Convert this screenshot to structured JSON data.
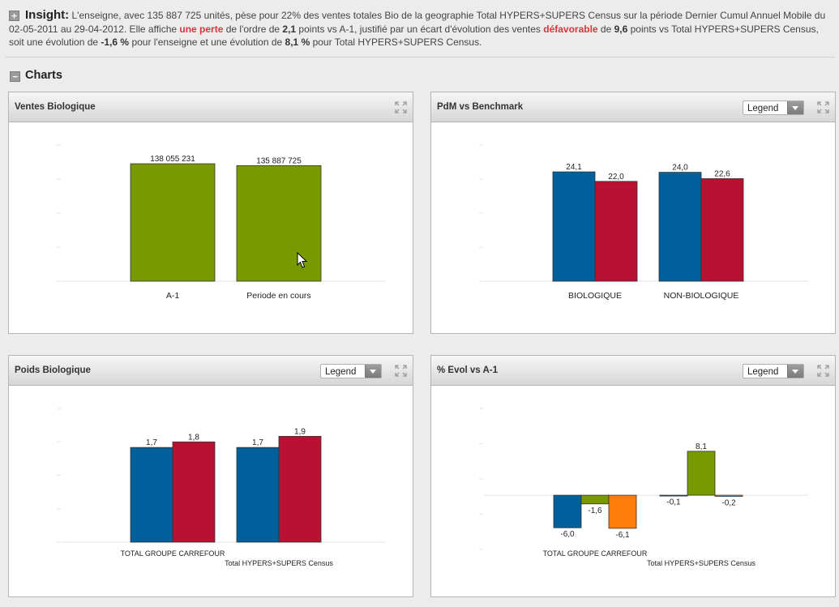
{
  "insight": {
    "title": "Insight:",
    "seg1": "L'enseigne, avec  135 887 725 unités, pèse pour 22% des ventes totales Bio de la geographie Total HYPERS+SUPERS Census sur la période Dernier Cumul Annuel Mobile du 02-05-2011 au 29-04-2012. Elle affiche ",
    "loss": "une perte",
    "seg2": "  de l'ordre de ",
    "points1": "2,1",
    "seg3": "  points vs A-1,  justifié par un écart d'évolution des ventes ",
    "unfav": "défavorable",
    "seg4": " de ",
    "points2": "9,6",
    "seg5": " points vs Total HYPERS+SUPERS Census, soit une évolution de ",
    "evol1": "-1,6 %",
    "seg6": " pour l'enseigne et une évolution de ",
    "evol2": "8,1 %",
    "seg7": " pour Total HYPERS+SUPERS Census."
  },
  "section": {
    "title": "Charts",
    "expand_symbol": "+",
    "collapse_symbol": "−"
  },
  "legend_dropdown_label": "Legend",
  "icons": {
    "insight_toggle": "plus-icon",
    "charts_toggle": "minus-icon",
    "panel_expand": "expand-arrows-icon",
    "cursor": "mouse-pointer-icon"
  },
  "colors": {
    "green": "#789a00",
    "blue": "#00609c",
    "red": "#b81232",
    "orange": "#ff7c0a",
    "highlight_red": "#d9363e"
  },
  "chart_data": [
    {
      "id": "ventes",
      "title": "Ventes Biologique",
      "type": "bar",
      "has_legend_dropdown": false,
      "categories": [
        "A-1",
        "Periode en cours"
      ],
      "ylim": [
        0,
        160000000
      ],
      "series": [
        {
          "values": [
            138055231,
            135887725
          ],
          "labels": [
            "138 055 231",
            "135 887 725"
          ],
          "color": "#789a00"
        }
      ]
    },
    {
      "id": "pdm",
      "title": "PdM vs Benchmark",
      "type": "bar",
      "has_legend_dropdown": true,
      "categories": [
        "BIOLOGIQUE",
        "NON-BIOLOGIQUE"
      ],
      "ylim": [
        0,
        30
      ],
      "series": [
        {
          "values": [
            24.1,
            24.0
          ],
          "labels": [
            "24,1",
            "24,0"
          ],
          "color": "#00609c"
        },
        {
          "values": [
            22.0,
            22.6
          ],
          "labels": [
            "22,0",
            "22,6"
          ],
          "color": "#b81232"
        }
      ]
    },
    {
      "id": "poids",
      "title": "Poids Biologique",
      "type": "bar",
      "has_legend_dropdown": true,
      "categories": [
        "TOTAL GROUPE CARREFOUR",
        "Total HYPERS+SUPERS Census"
      ],
      "ylim": [
        0,
        2.4
      ],
      "series": [
        {
          "values": [
            1.7,
            1.7
          ],
          "labels": [
            "1,7",
            "1,7"
          ],
          "color": "#00609c"
        },
        {
          "values": [
            1.8,
            1.9
          ],
          "labels": [
            "1,8",
            "1,9"
          ],
          "color": "#b81232"
        }
      ]
    },
    {
      "id": "evol",
      "title": "% Evol vs A-1",
      "type": "bar",
      "has_legend_dropdown": true,
      "categories": [
        "TOTAL GROUPE CARREFOUR",
        "Total HYPERS+SUPERS Census"
      ],
      "ylim": [
        -10,
        16
      ],
      "series": [
        {
          "values": [
            -6.0,
            -0.1
          ],
          "labels": [
            "-6,0",
            "-0,1"
          ],
          "color": "#00609c"
        },
        {
          "values": [
            -1.6,
            8.1
          ],
          "labels": [
            "-1,6",
            "8,1"
          ],
          "color": "#789a00"
        },
        {
          "values": [
            -6.1,
            -0.2
          ],
          "labels": [
            "-6,1",
            "-0,2"
          ],
          "color": "#ff7c0a"
        }
      ]
    }
  ]
}
